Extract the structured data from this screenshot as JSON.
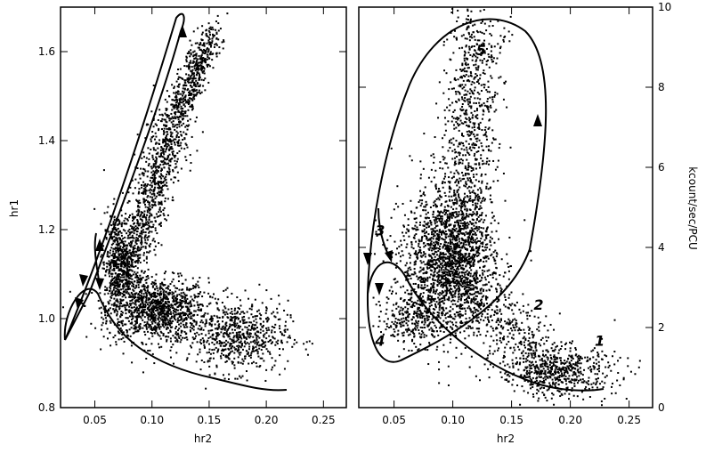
{
  "chart_data": [
    {
      "type": "scatter",
      "panel": "left",
      "xlabel": "hr2",
      "ylabel": "hr1",
      "xlim": [
        0.02,
        0.27
      ],
      "ylim": [
        0.8,
        1.7
      ],
      "xticks": [
        "0.05",
        "0.10",
        "0.15",
        "0.20",
        "0.25"
      ],
      "yticks": [
        "0.8",
        "1.0",
        "1.2",
        "1.4",
        "1.6"
      ],
      "clusters": [
        {
          "x": 0.105,
          "y": 1.02,
          "sx": 0.022,
          "sy": 0.035,
          "n": 1100
        },
        {
          "x": 0.175,
          "y": 0.96,
          "sx": 0.022,
          "sy": 0.04,
          "n": 650
        },
        {
          "x": 0.07,
          "y": 1.12,
          "sx": 0.006,
          "sy": 0.06,
          "n": 450
        }
      ],
      "ridges": [
        {
          "from": [
            0.075,
            1.08
          ],
          "to": [
            0.12,
            1.45
          ],
          "width": 0.008,
          "n": 1000
        },
        {
          "from": [
            0.12,
            1.45
          ],
          "to": [
            0.155,
            1.65
          ],
          "width": 0.006,
          "n": 500
        }
      ],
      "path_arrows": 5
    },
    {
      "type": "scatter",
      "panel": "right",
      "xlabel": "hr2",
      "ylabel": "kcount/sec/PCU",
      "xlim": [
        0.02,
        0.27
      ],
      "ylim": [
        0,
        10
      ],
      "xticks": [
        "0.05",
        "0.10",
        "0.15",
        "0.20",
        "0.25"
      ],
      "yticks": [
        "0",
        "2",
        "4",
        "6",
        "8",
        "10"
      ],
      "clusters": [
        {
          "x": 0.095,
          "y": 3.6,
          "sx": 0.02,
          "sy": 0.9,
          "n": 1600
        },
        {
          "x": 0.19,
          "y": 0.9,
          "sx": 0.025,
          "sy": 0.3,
          "n": 500
        },
        {
          "x": 0.065,
          "y": 2.3,
          "sx": 0.012,
          "sy": 0.4,
          "n": 250
        }
      ],
      "ridges": [
        {
          "from": [
            0.105,
            3.0
          ],
          "to": [
            0.12,
            9.5
          ],
          "width": 0.012,
          "n": 1100
        },
        {
          "from": [
            0.11,
            3.0
          ],
          "to": [
            0.19,
            0.8
          ],
          "width": 0.012,
          "n": 500
        }
      ],
      "annotations": [
        {
          "text": "1",
          "x": 0.225,
          "y": 1.55
        },
        {
          "text": "2",
          "x": 0.173,
          "y": 2.45
        },
        {
          "text": "3",
          "x": 0.038,
          "y": 4.3
        },
        {
          "text": "4",
          "x": 0.038,
          "y": 1.55
        },
        {
          "text": "5",
          "x": 0.124,
          "y": 8.8
        }
      ],
      "path_arrows": 4
    }
  ]
}
